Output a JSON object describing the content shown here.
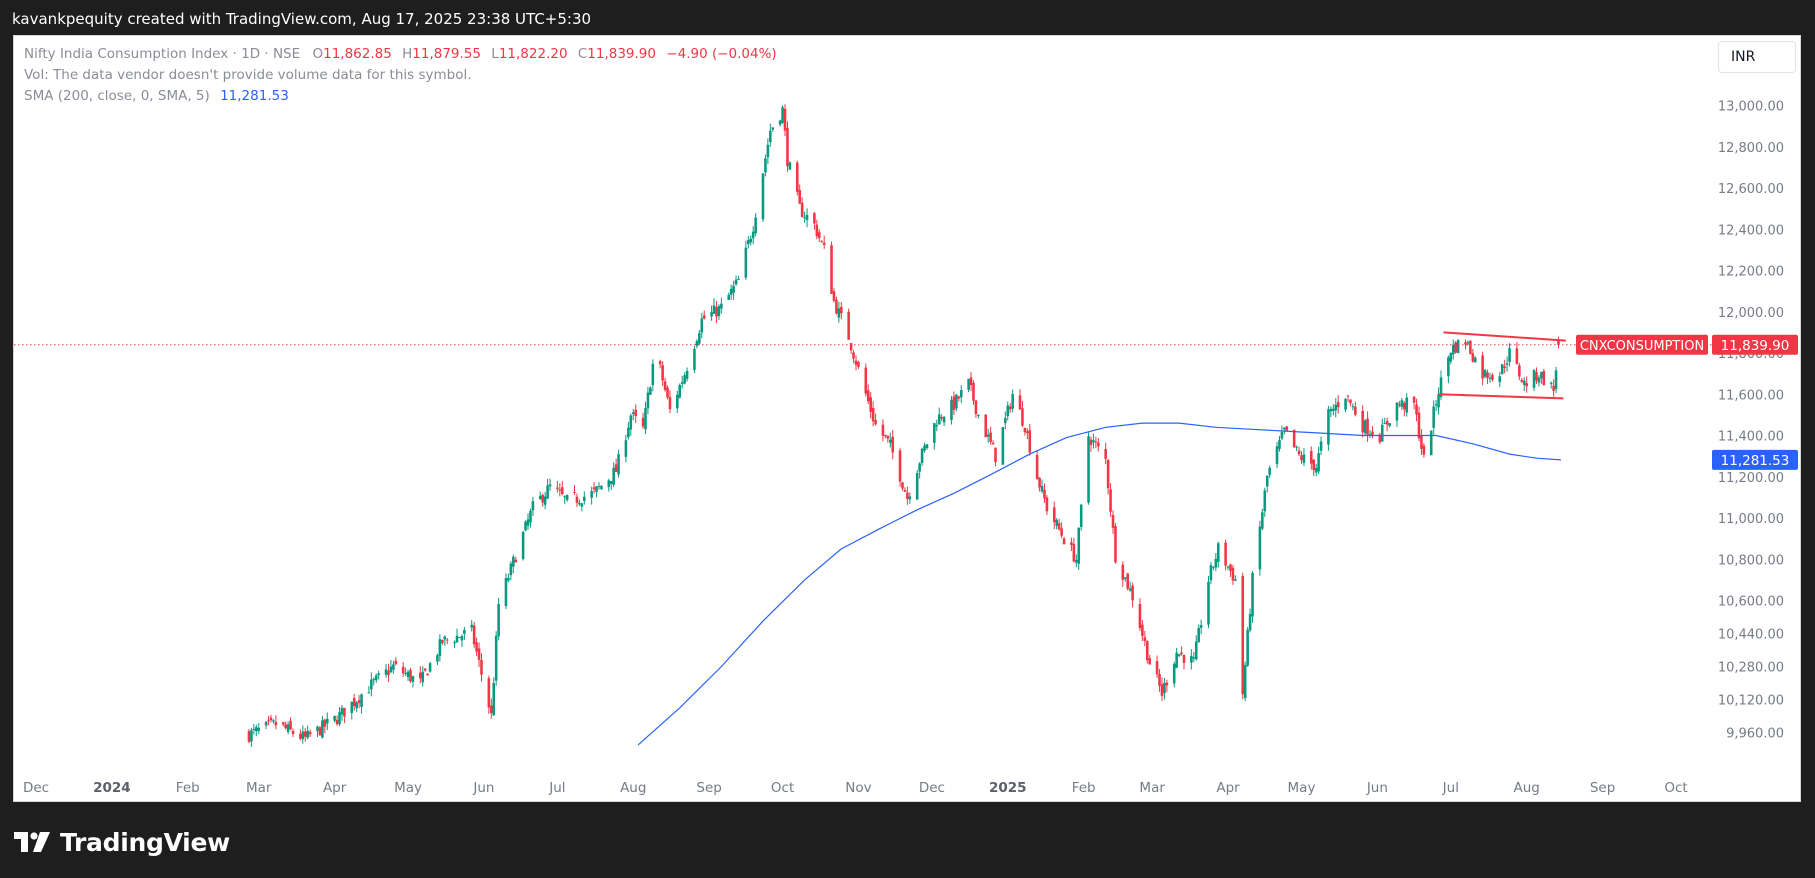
{
  "header": {
    "text": "kavankpequity created with TradingView.com, Aug 17, 2025 23:38 UTC+5:30"
  },
  "legend": {
    "symbol": "Nifty India Consumption Index · 1D · NSE",
    "o_label": "O",
    "o_value": "11,862.85",
    "h_label": "H",
    "h_value": "11,879.55",
    "l_label": "L",
    "l_value": "11,822.20",
    "c_label": "C",
    "c_value": "11,839.90",
    "change": "−4.90 (−0.04%)",
    "vol_note": "Vol: The data vendor doesn't provide volume data for this symbol.",
    "sma_label": "SMA (200, close, 0, SMA, 5)",
    "sma_value": "11,281.53"
  },
  "currency_button": "INR",
  "colors": {
    "up": "#089981",
    "down": "#f23645",
    "sma": "#2962ff",
    "trendline": "#f23645"
  },
  "footer": {
    "brand": "TradingView",
    "logo_icon": "tradingview-logo-icon"
  },
  "chart_data": {
    "type": "candlestick",
    "y_ticks": [
      {
        "v": 13000,
        "label": "13,000.00"
      },
      {
        "v": 12800,
        "label": "12,800.00"
      },
      {
        "v": 12600,
        "label": "12,600.00"
      },
      {
        "v": 12400,
        "label": "12,400.00"
      },
      {
        "v": 12200,
        "label": "12,200.00"
      },
      {
        "v": 12000,
        "label": "12,000.00"
      },
      {
        "v": 11800,
        "label": "11,800.00"
      },
      {
        "v": 11600,
        "label": "11,600.00"
      },
      {
        "v": 11400,
        "label": "11,400.00"
      },
      {
        "v": 11200,
        "label": "11,200.00"
      },
      {
        "v": 11000,
        "label": "11,000.00"
      },
      {
        "v": 10800,
        "label": "10,800.00"
      },
      {
        "v": 10600,
        "label": "10,600.00"
      },
      {
        "v": 10440,
        "label": "10,440.00"
      },
      {
        "v": 10280,
        "label": "10,280.00"
      },
      {
        "v": 10120,
        "label": "10,120.00"
      },
      {
        "v": 9960,
        "label": "9,960.00"
      }
    ],
    "x_ticks": [
      {
        "label": "Dec",
        "date": "2023-12-01",
        "bold": false
      },
      {
        "label": "2024",
        "date": "2024-01-01",
        "bold": true
      },
      {
        "label": "Feb",
        "date": "2024-02-01",
        "bold": false
      },
      {
        "label": "Mar",
        "date": "2024-03-01",
        "bold": false
      },
      {
        "label": "Apr",
        "date": "2024-04-01",
        "bold": false
      },
      {
        "label": "May",
        "date": "2024-05-01",
        "bold": false
      },
      {
        "label": "Jun",
        "date": "2024-06-01",
        "bold": false
      },
      {
        "label": "Jul",
        "date": "2024-07-01",
        "bold": false
      },
      {
        "label": "Aug",
        "date": "2024-08-01",
        "bold": false
      },
      {
        "label": "Sep",
        "date": "2024-09-01",
        "bold": false
      },
      {
        "label": "Oct",
        "date": "2024-10-01",
        "bold": false
      },
      {
        "label": "Nov",
        "date": "2024-11-01",
        "bold": false
      },
      {
        "label": "Dec",
        "date": "2024-12-01",
        "bold": false
      },
      {
        "label": "2025",
        "date": "2025-01-01",
        "bold": true
      },
      {
        "label": "Feb",
        "date": "2025-02-01",
        "bold": false
      },
      {
        "label": "Mar",
        "date": "2025-03-01",
        "bold": false
      },
      {
        "label": "Apr",
        "date": "2025-04-01",
        "bold": false
      },
      {
        "label": "May",
        "date": "2025-05-01",
        "bold": false
      },
      {
        "label": "Jun",
        "date": "2025-06-01",
        "bold": false
      },
      {
        "label": "Jul",
        "date": "2025-07-01",
        "bold": false
      },
      {
        "label": "Aug",
        "date": "2025-08-01",
        "bold": false
      },
      {
        "label": "Sep",
        "date": "2025-09-01",
        "bold": false
      },
      {
        "label": "Oct",
        "date": "2025-10-01",
        "bold": false
      }
    ],
    "ylim": [
      9880,
      13080
    ],
    "last_price": {
      "value": 11839.9,
      "symbol_label": "CNXCONSUMPTION",
      "value_label": "11,839.90"
    },
    "sma_badge": {
      "value": 11281.53,
      "label": "11,281.53"
    },
    "close_path": [
      [
        "2024-02-26",
        9950
      ],
      [
        "2024-03-08",
        10000
      ],
      [
        "2024-03-20",
        9930
      ],
      [
        "2024-04-02",
        10030
      ],
      [
        "2024-04-15",
        10180
      ],
      [
        "2024-04-25",
        10280
      ],
      [
        "2024-05-06",
        10200
      ],
      [
        "2024-05-15",
        10400
      ],
      [
        "2024-05-27",
        10450
      ],
      [
        "2024-06-04",
        10040
      ],
      [
        "2024-06-07",
        10580
      ],
      [
        "2024-06-14",
        10820
      ],
      [
        "2024-06-21",
        11050
      ],
      [
        "2024-06-28",
        11150
      ],
      [
        "2024-07-05",
        11080
      ],
      [
        "2024-07-16",
        11120
      ],
      [
        "2024-07-25",
        11230
      ],
      [
        "2024-07-31",
        11500
      ],
      [
        "2024-08-05",
        11430
      ],
      [
        "2024-08-10",
        11820
      ],
      [
        "2024-08-16",
        11520
      ],
      [
        "2024-08-22",
        11700
      ],
      [
        "2024-08-29",
        11960
      ],
      [
        "2024-09-06",
        12020
      ],
      [
        "2024-09-13",
        12150
      ],
      [
        "2024-09-19",
        12420
      ],
      [
        "2024-09-26",
        12880
      ],
      [
        "2024-10-01",
        12980
      ],
      [
        "2024-10-03",
        12740
      ],
      [
        "2024-10-08",
        12500
      ],
      [
        "2024-10-14",
        12420
      ],
      [
        "2024-10-18",
        12300
      ],
      [
        "2024-10-22",
        12050
      ],
      [
        "2024-10-28",
        11880
      ],
      [
        "2024-11-04",
        11600
      ],
      [
        "2024-11-08",
        11450
      ],
      [
        "2024-11-14",
        11350
      ],
      [
        "2024-11-21",
        11100
      ],
      [
        "2024-11-26",
        11280
      ],
      [
        "2024-12-03",
        11480
      ],
      [
        "2024-12-10",
        11550
      ],
      [
        "2024-12-16",
        11650
      ],
      [
        "2024-12-20",
        11500
      ],
      [
        "2024-12-27",
        11300
      ],
      [
        "2025-01-03",
        11600
      ],
      [
        "2025-01-08",
        11450
      ],
      [
        "2025-01-13",
        11200
      ],
      [
        "2025-01-17",
        11050
      ],
      [
        "2025-01-24",
        10900
      ],
      [
        "2025-01-29",
        10800
      ],
      [
        "2025-02-03",
        11400
      ],
      [
        "2025-02-10",
        11280
      ],
      [
        "2025-02-14",
        10820
      ],
      [
        "2025-02-21",
        10620
      ],
      [
        "2025-02-28",
        10300
      ],
      [
        "2025-03-05",
        10150
      ],
      [
        "2025-03-11",
        10350
      ],
      [
        "2025-03-18",
        10300
      ],
      [
        "2025-03-24",
        10700
      ],
      [
        "2025-03-28",
        10850
      ],
      [
        "2025-04-04",
        10700
      ],
      [
        "2025-04-07",
        10150
      ],
      [
        "2025-04-11",
        10700
      ],
      [
        "2025-04-17",
        11200
      ],
      [
        "2025-04-24",
        11420
      ],
      [
        "2025-04-30",
        11300
      ],
      [
        "2025-05-07",
        11250
      ],
      [
        "2025-05-12",
        11500
      ],
      [
        "2025-05-19",
        11600
      ],
      [
        "2025-05-26",
        11450
      ],
      [
        "2025-06-02",
        11400
      ],
      [
        "2025-06-09",
        11550
      ],
      [
        "2025-06-16",
        11550
      ],
      [
        "2025-06-20",
        11280
      ],
      [
        "2025-06-26",
        11620
      ],
      [
        "2025-07-01",
        11820
      ],
      [
        "2025-07-07",
        11860
      ],
      [
        "2025-07-14",
        11700
      ],
      [
        "2025-07-21",
        11700
      ],
      [
        "2025-07-25",
        11800
      ],
      [
        "2025-07-31",
        11650
      ],
      [
        "2025-08-06",
        11700
      ],
      [
        "2025-08-12",
        11620
      ],
      [
        "2025-08-14",
        11840
      ]
    ],
    "sma": [
      [
        "2024-08-03",
        9900
      ],
      [
        "2024-08-20",
        10080
      ],
      [
        "2024-09-06",
        10280
      ],
      [
        "2024-09-23",
        10500
      ],
      [
        "2024-10-10",
        10700
      ],
      [
        "2024-10-25",
        10850
      ],
      [
        "2024-11-10",
        10950
      ],
      [
        "2024-11-25",
        11040
      ],
      [
        "2024-12-10",
        11120
      ],
      [
        "2024-12-25",
        11210
      ],
      [
        "2025-01-10",
        11310
      ],
      [
        "2025-01-25",
        11390
      ],
      [
        "2025-02-10",
        11440
      ],
      [
        "2025-02-25",
        11460
      ],
      [
        "2025-03-12",
        11460
      ],
      [
        "2025-03-27",
        11440
      ],
      [
        "2025-04-11",
        11430
      ],
      [
        "2025-04-26",
        11420
      ],
      [
        "2025-05-11",
        11410
      ],
      [
        "2025-05-26",
        11400
      ],
      [
        "2025-06-10",
        11400
      ],
      [
        "2025-06-25",
        11400
      ],
      [
        "2025-07-10",
        11360
      ],
      [
        "2025-07-25",
        11310
      ],
      [
        "2025-08-05",
        11290
      ],
      [
        "2025-08-15",
        11281.53
      ]
    ],
    "trendlines": [
      {
        "name": "resistance",
        "from": [
          "2025-06-28",
          11900
        ],
        "to": [
          "2025-08-17",
          11860
        ]
      },
      {
        "name": "support",
        "from": [
          "2025-06-26",
          11600
        ],
        "to": [
          "2025-08-16",
          11580
        ]
      }
    ]
  }
}
